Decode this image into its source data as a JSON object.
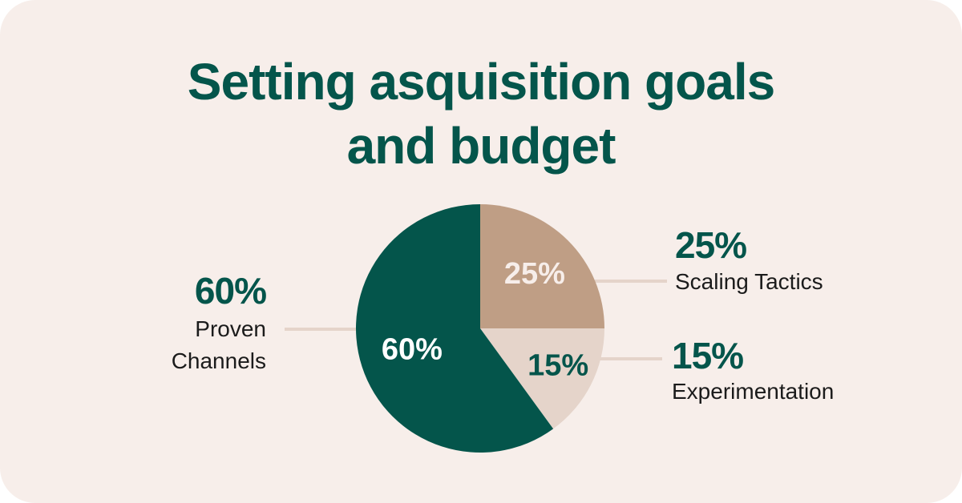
{
  "title_lines": [
    "Setting asquisition goals",
    "and budget"
  ],
  "chart_data": {
    "type": "pie",
    "title": "Setting asquisition goals and budget",
    "slices": [
      {
        "label": "Scaling Tactics",
        "value": 25,
        "display": "25%",
        "color": "#bf9e85",
        "inner_label_color": "#f7eeea"
      },
      {
        "label": "Experimentation",
        "value": 15,
        "display": "15%",
        "color": "#e5d4ca",
        "inner_label_color": "#04554b"
      },
      {
        "label": "Proven Channels",
        "value": 60,
        "display": "60%",
        "color": "#04554b",
        "inner_label_color": "#ffffff"
      }
    ],
    "leader_line_color": "#e5d4ca",
    "callouts": [
      {
        "pct": "25%",
        "lines": [
          "Scaling Tactics"
        ]
      },
      {
        "pct": "15%",
        "lines": [
          "Experimentation"
        ]
      },
      {
        "pct": "60%",
        "lines": [
          "Proven",
          "Channels"
        ]
      }
    ]
  }
}
